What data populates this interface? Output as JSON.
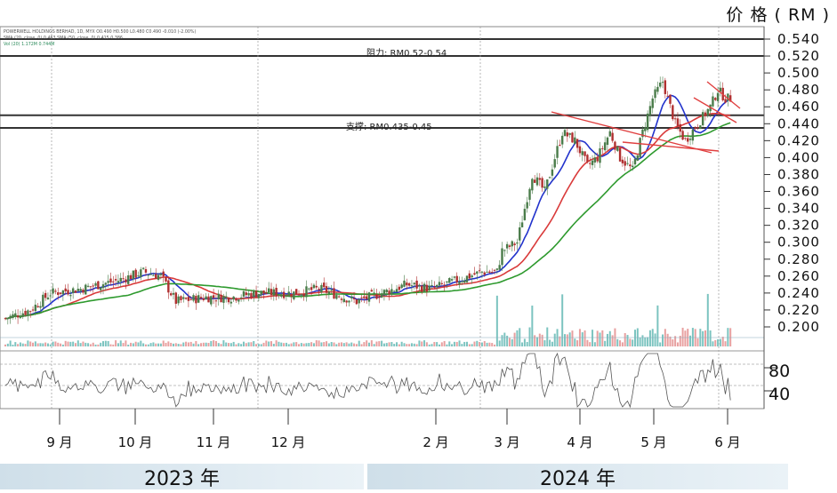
{
  "unit_label": "价 格 ( RM )",
  "header_lines": {
    "line1": "POWERWELL HOLDINGS BERHAD, 1D, MYX O0.490 H0.500 L0.480 C0.490 -0.010 (-2.00%)",
    "line2": "SMA (20, close, 0) 0.463   SMA (50, close, 0) 0.415   0.386",
    "line3": "Vol (20)   1.172M   0.744M"
  },
  "annotations": {
    "resistance": "阻力: RM0.52-0.54",
    "support": "支撑: RM0.435-0.45"
  },
  "year_labels": [
    "2023 年",
    "2024 年"
  ],
  "chart_data": {
    "type": "candlestick",
    "title": "",
    "ylabel": "价 格 ( RM )",
    "ylim": [
      0.19,
      0.55
    ],
    "yticks": [
      "0.540",
      "0.520",
      "0.500",
      "0.480",
      "0.460",
      "0.440",
      "0.420",
      "0.400",
      "0.380",
      "0.360",
      "0.340",
      "0.320",
      "0.300",
      "0.280",
      "0.260",
      "0.240",
      "0.220",
      "0.200"
    ],
    "x_tick_labels": [
      "9 月",
      "10 月",
      "11 月",
      "12 月",
      "2 月",
      "3 月",
      "4 月",
      "5 月",
      "6 月"
    ],
    "resistance_zone": [
      0.52,
      0.54
    ],
    "support_zone": [
      0.435,
      0.45
    ],
    "rsi_levels": [
      "80",
      "40"
    ],
    "price_anchors": [
      [
        0,
        0.21
      ],
      [
        10,
        0.22
      ],
      [
        18,
        0.24
      ],
      [
        30,
        0.245
      ],
      [
        45,
        0.255
      ],
      [
        55,
        0.265
      ],
      [
        62,
        0.26
      ],
      [
        68,
        0.23
      ],
      [
        80,
        0.235
      ],
      [
        90,
        0.235
      ],
      [
        100,
        0.24
      ],
      [
        115,
        0.24
      ],
      [
        125,
        0.245
      ],
      [
        140,
        0.23
      ],
      [
        150,
        0.24
      ],
      [
        160,
        0.25
      ],
      [
        170,
        0.245
      ],
      [
        180,
        0.255
      ],
      [
        190,
        0.265
      ],
      [
        196,
        0.265
      ],
      [
        198,
        0.29
      ],
      [
        204,
        0.3
      ],
      [
        210,
        0.38
      ],
      [
        215,
        0.36
      ],
      [
        222,
        0.43
      ],
      [
        227,
        0.42
      ],
      [
        232,
        0.39
      ],
      [
        236,
        0.4
      ],
      [
        241,
        0.43
      ],
      [
        245,
        0.4
      ],
      [
        250,
        0.385
      ],
      [
        254,
        0.43
      ],
      [
        258,
        0.47
      ],
      [
        262,
        0.49
      ],
      [
        267,
        0.44
      ],
      [
        271,
        0.42
      ],
      [
        276,
        0.44
      ],
      [
        281,
        0.46
      ],
      [
        284,
        0.48
      ],
      [
        287,
        0.47
      ],
      [
        290,
        0.47
      ]
    ],
    "ma_colors": [
      "#2233cc",
      "#d93a3a",
      "#2e9a2e"
    ],
    "up_color": "#4a7c4a",
    "down_color": "#b03030",
    "trendline_color": "#e04040"
  }
}
